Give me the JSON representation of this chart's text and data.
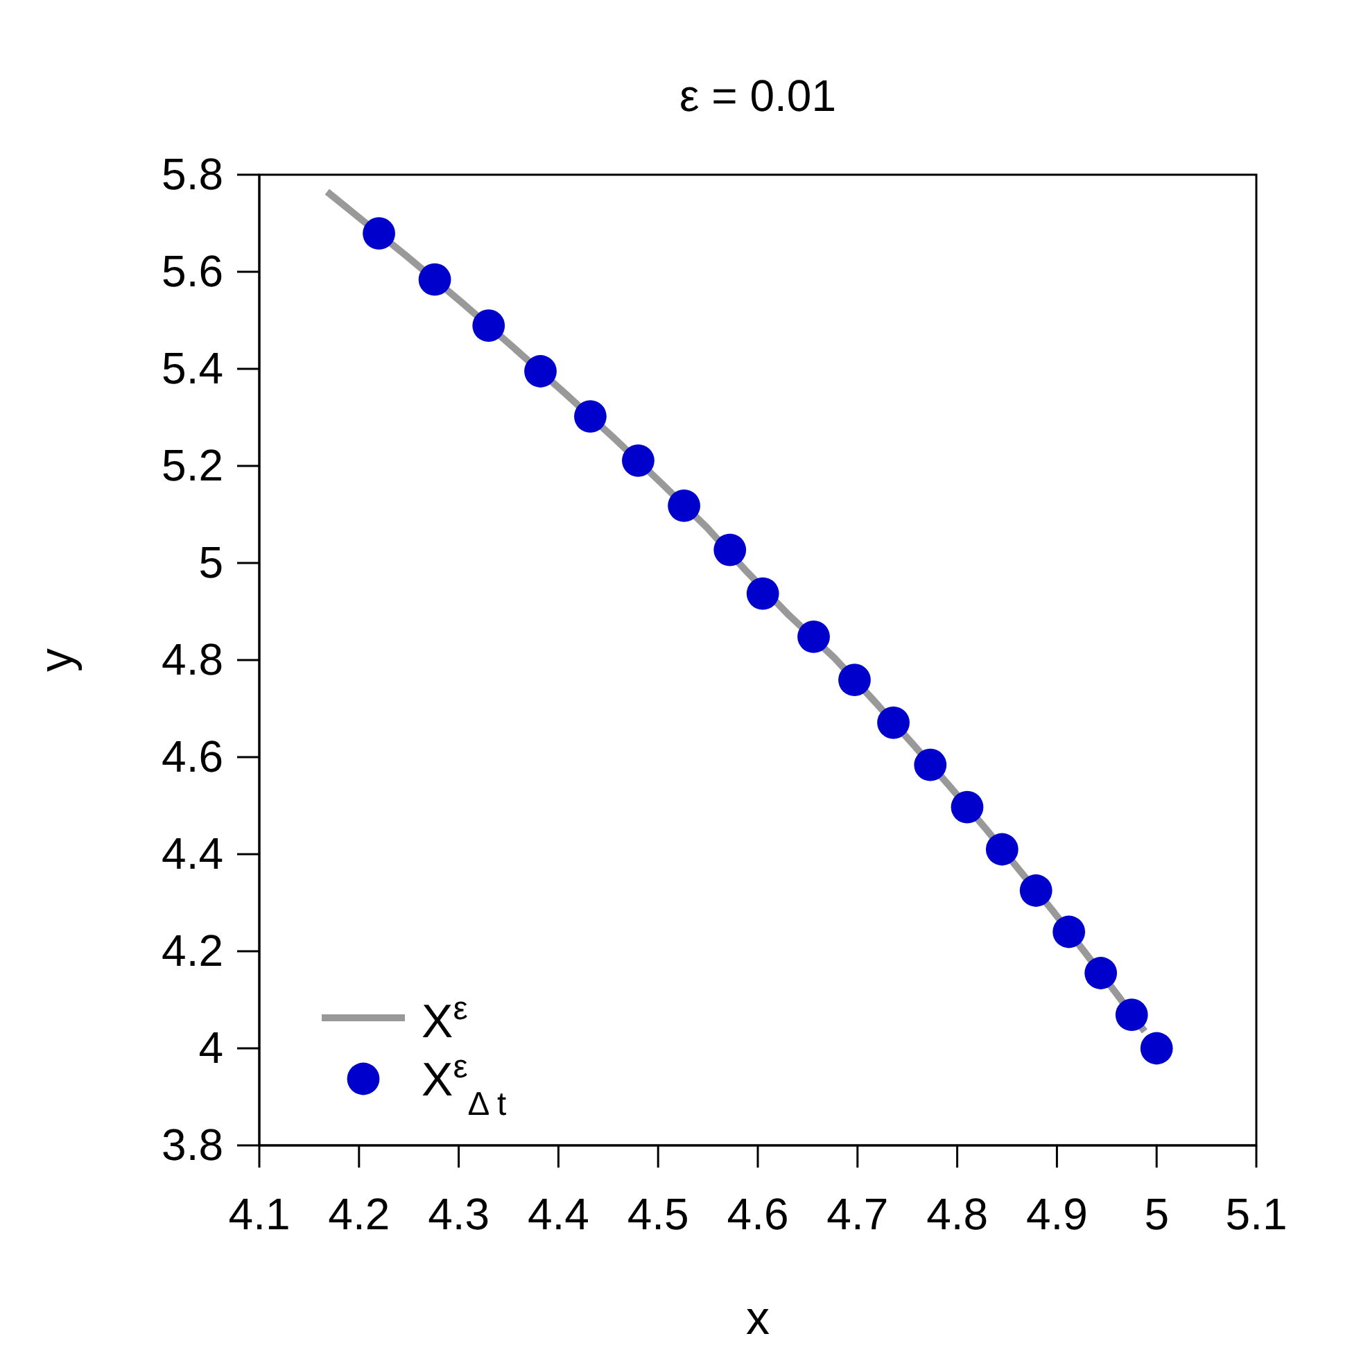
{
  "chart_data": {
    "type": "scatter",
    "title": "ε = 0.01",
    "xlabel": "x",
    "ylabel": "y",
    "xlim": [
      4.1,
      5.1
    ],
    "xticks": [
      4.1,
      4.2,
      4.3,
      4.4,
      4.5,
      4.6,
      4.7,
      4.8,
      4.9,
      5,
      5.1
    ],
    "ylim": [
      3.8,
      5.8
    ],
    "yticks": [
      3.8,
      4,
      4.2,
      4.4,
      4.6,
      4.8,
      5,
      5.2,
      5.4,
      5.6,
      5.8
    ],
    "legend": "bottom left",
    "series": [
      {
        "name": "X$^{ε}$",
        "type": "line",
        "color": "#999999",
        "line_style": "solid",
        "marker": "none",
        "x": [
          4.168,
          4.248,
          4.303,
          4.356,
          4.407,
          4.456,
          4.503,
          4.549,
          4.589,
          4.631,
          4.677,
          4.717,
          4.755,
          4.792,
          4.828,
          4.862,
          4.896,
          4.928,
          4.96,
          4.988
        ],
        "values": [
          5.765,
          5.632,
          5.537,
          5.442,
          5.349,
          5.257,
          5.165,
          5.073,
          4.982,
          4.893,
          4.804,
          4.715,
          4.628,
          4.541,
          4.454,
          4.368,
          4.283,
          4.198,
          4.112,
          4.035
        ]
      },
      {
        "name": "X$^{ε}$$_{Δ t}$",
        "color": "#0000cc",
        "marker": "circle",
        "x": [
          4.22,
          4.276,
          4.33,
          4.382,
          4.432,
          4.48,
          4.526,
          4.572,
          4.605,
          4.656,
          4.697,
          4.736,
          4.773,
          4.81,
          4.845,
          4.879,
          4.912,
          4.944,
          4.975,
          5.0
        ],
        "values": [
          5.679,
          5.584,
          5.489,
          5.395,
          5.302,
          5.211,
          5.118,
          5.027,
          4.937,
          4.848,
          4.759,
          4.671,
          4.584,
          4.497,
          4.41,
          4.325,
          4.24,
          4.155,
          4.069,
          4.0
        ]
      }
    ]
  }
}
